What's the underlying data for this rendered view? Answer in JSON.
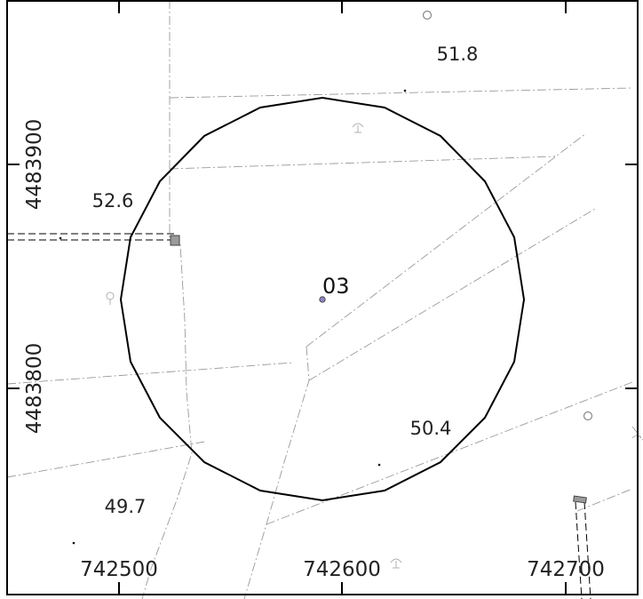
{
  "axis": {
    "x_ticks": [
      "742500",
      "742600",
      "742700"
    ],
    "y_ticks": [
      "4483900",
      "4483800"
    ]
  },
  "spot_heights": [
    "51.8",
    "52.6",
    "50.4",
    "49.7"
  ],
  "survey_point": {
    "label": "03"
  },
  "colors": {
    "frame": "#000000",
    "circle": "#000000",
    "road": "#8c8c8c",
    "survey_point": "#8f86c0",
    "building": "#9a9a9a"
  },
  "icons": [
    "tree-symbol-icon",
    "tree-symbol-icon",
    "tree-symbol-icon",
    "tree-symbol-icon",
    "well-circle-icon",
    "well-circle-icon"
  ]
}
